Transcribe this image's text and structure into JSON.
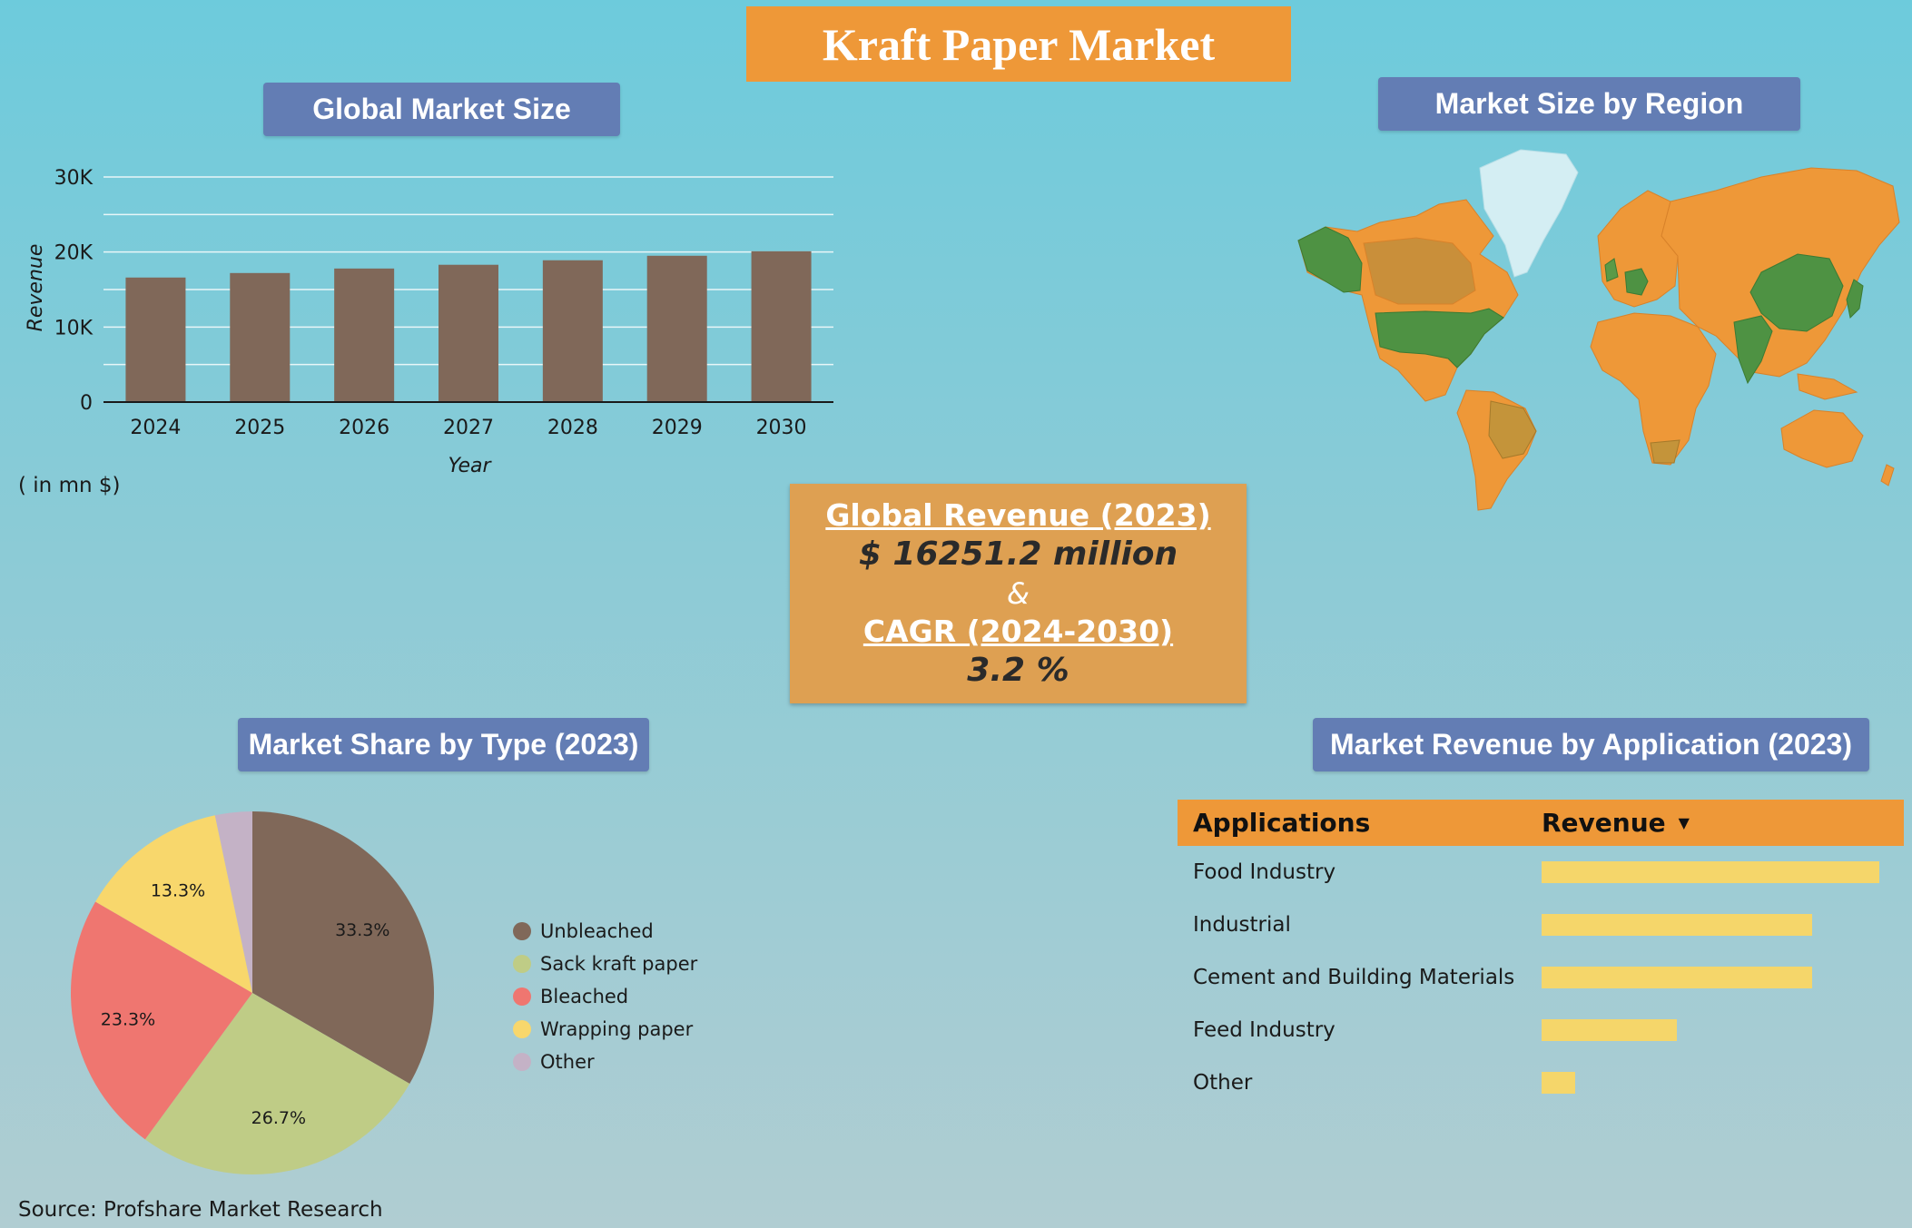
{
  "page_title": "Kraft Paper Market",
  "sections": {
    "global_market_size": "Global Market Size",
    "market_by_region": "Market Size by Region",
    "market_share_by_type": "Market Share by Type (2023)",
    "revenue_by_application": "Market Revenue by Application (2023)"
  },
  "unit_note": "( in mn $)",
  "kpi": {
    "revenue_label": "Global  Revenue (2023)",
    "revenue_value": "$ 16251.2 million",
    "ampersand": "&",
    "cagr_label": "CAGR (2024-2030)",
    "cagr_value": "3.2 %"
  },
  "source": "Source: Profshare Market Research",
  "colors": {
    "bar": "#806859",
    "title_bg": "#ee9838",
    "section_bg": "#637db4",
    "map_land": "#ee9838",
    "map_highlight": "#4e9243",
    "map_mid": "#c4943a",
    "greenland": "#d4eef3",
    "app_bar": "#f5d66a"
  },
  "map": {
    "highlighted_regions": [
      "North America",
      "China",
      "India",
      "Japan",
      "Germany"
    ]
  },
  "applications_table": {
    "headers": [
      "Applications",
      "Revenue"
    ],
    "rows": [
      {
        "label": "Food Industry",
        "value": 1.0
      },
      {
        "label": "Industrial",
        "value": 0.8
      },
      {
        "label": "Cement and Building Materials",
        "value": 0.8
      },
      {
        "label": "Feed Industry",
        "value": 0.4
      },
      {
        "label": "Other",
        "value": 0.1
      }
    ]
  },
  "chart_data": [
    {
      "type": "bar",
      "title": "Global Market Size",
      "categories": [
        "2024",
        "2025",
        "2026",
        "2027",
        "2028",
        "2029",
        "2030"
      ],
      "values": [
        16600,
        17200,
        17800,
        18300,
        18900,
        19500,
        20100
      ],
      "xlabel": "Year",
      "ylabel": "Revenue",
      "ylim": [
        0,
        30000
      ],
      "yticks": [
        0,
        10000,
        20000,
        30000
      ],
      "ytick_labels": [
        "0",
        "10K",
        "20K",
        "30K"
      ],
      "grid": true,
      "color": "#806859"
    },
    {
      "type": "pie",
      "title": "Market Share by Type (2023)",
      "labels": [
        "Unbleached",
        "Sack kraft paper",
        "Bleached",
        "Wrapping paper",
        "Other"
      ],
      "values": [
        33.3,
        26.7,
        23.3,
        13.3,
        3.3
      ],
      "data_labels": [
        "33.3%",
        "26.7%",
        "23.3%",
        "13.3%",
        ""
      ],
      "colors": [
        "#806859",
        "#bfcc86",
        "#ef7670",
        "#f8d76c",
        "#c4b2c6"
      ],
      "legend": "right"
    }
  ]
}
